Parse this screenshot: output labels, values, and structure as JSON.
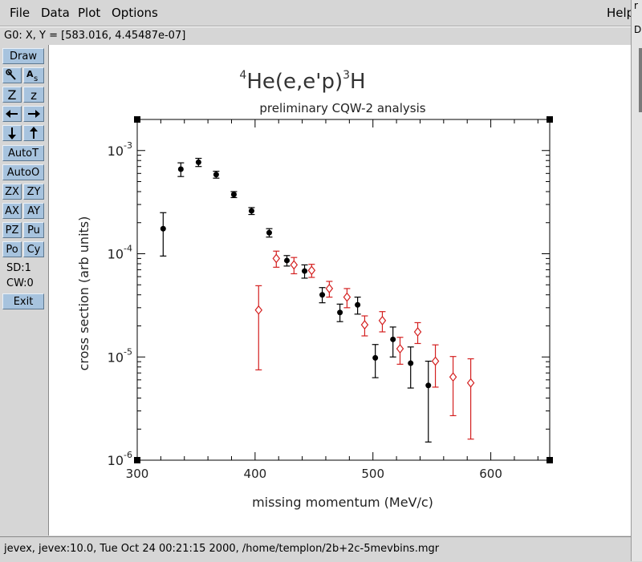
{
  "menu": {
    "file": "File",
    "data": "Data",
    "plot": "Plot",
    "options": "Options",
    "help": "Help"
  },
  "coords": {
    "text": "G0: X, Y = [583.016, 4.45487e-07]"
  },
  "toolbar": {
    "draw": "Draw",
    "zoom_icon_label": "Z",
    "zoom_small_label": "z",
    "autot": "AutoT",
    "autoo": "AutoO",
    "zx": "ZX",
    "zy": "ZY",
    "ax": "AX",
    "ay": "AY",
    "pz": "PZ",
    "pu": "Pu",
    "po": "Po",
    "cy": "Cy",
    "sd": "SD:1",
    "cw": "CW:0",
    "exit": "Exit"
  },
  "status": {
    "text": "jevex, jevex:10.0, Tue Oct 24 00:21:15 2000, /home/templon/2b+2c-5mevbins.mgr"
  },
  "chart_data": {
    "type": "scatter",
    "title": "4He(e,e'p)3H",
    "title_parts": {
      "sup1": "4",
      "main": "He(e,e'p)",
      "sup2": "3",
      "tail": "H"
    },
    "subtitle": "preliminary CQW-2 analysis",
    "xlabel": "missing momentum (MeV/c)",
    "ylabel": "cross section (arb units)",
    "xlim": [
      300,
      650
    ],
    "ylim": [
      1e-06,
      0.002
    ],
    "yscale": "log",
    "x_ticks": [
      300,
      400,
      500,
      600
    ],
    "x_tick_labels": [
      "300",
      "400",
      "500",
      "600"
    ],
    "y_ticks": [
      {
        "value": 1e-06,
        "base": "10",
        "exp": "-6"
      },
      {
        "value": 1e-05,
        "base": "10",
        "exp": "-5"
      },
      {
        "value": 0.0001,
        "base": "10",
        "exp": "-4"
      },
      {
        "value": 0.001,
        "base": "10",
        "exp": "-3"
      }
    ],
    "series": [
      {
        "name": "series-black",
        "marker": "circle",
        "color": "#000000",
        "points": [
          {
            "x": 322,
            "y": 0.000175,
            "ylo": 9.5e-05,
            "yhi": 0.00025
          },
          {
            "x": 337,
            "y": 0.00066,
            "ylo": 0.00056,
            "yhi": 0.00076
          },
          {
            "x": 352,
            "y": 0.00077,
            "ylo": 0.0007,
            "yhi": 0.00084
          },
          {
            "x": 367,
            "y": 0.000585,
            "ylo": 0.00054,
            "yhi": 0.00063
          },
          {
            "x": 382,
            "y": 0.000375,
            "ylo": 0.00035,
            "yhi": 0.0004
          },
          {
            "x": 397,
            "y": 0.00026,
            "ylo": 0.00024,
            "yhi": 0.00028
          },
          {
            "x": 412,
            "y": 0.00016,
            "ylo": 0.000145,
            "yhi": 0.000175
          },
          {
            "x": 427,
            "y": 8.6e-05,
            "ylo": 7.6e-05,
            "yhi": 9.6e-05
          },
          {
            "x": 442,
            "y": 6.8e-05,
            "ylo": 5.8e-05,
            "yhi": 7.8e-05
          },
          {
            "x": 457,
            "y": 4e-05,
            "ylo": 3.35e-05,
            "yhi": 4.7e-05
          },
          {
            "x": 472,
            "y": 2.7e-05,
            "ylo": 2.2e-05,
            "yhi": 3.25e-05
          },
          {
            "x": 487,
            "y": 3.2e-05,
            "ylo": 2.6e-05,
            "yhi": 3.8e-05
          },
          {
            "x": 502,
            "y": 9.8e-06,
            "ylo": 6.3e-06,
            "yhi": 1.32e-05
          },
          {
            "x": 517,
            "y": 1.48e-05,
            "ylo": 1e-05,
            "yhi": 1.95e-05
          },
          {
            "x": 532,
            "y": 8.7e-06,
            "ylo": 5e-06,
            "yhi": 1.25e-05
          },
          {
            "x": 547,
            "y": 5.3e-06,
            "ylo": 1.5e-06,
            "yhi": 9.1e-06
          }
        ]
      },
      {
        "name": "series-red",
        "marker": "diamond",
        "color": "#d42020",
        "points": [
          {
            "x": 403,
            "y": 2.85e-05,
            "ylo": 7.5e-06,
            "yhi": 4.9e-05
          },
          {
            "x": 418,
            "y": 9e-05,
            "ylo": 7.4e-05,
            "yhi": 0.000106
          },
          {
            "x": 433,
            "y": 7.8e-05,
            "ylo": 6.4e-05,
            "yhi": 9.2e-05
          },
          {
            "x": 448,
            "y": 6.9e-05,
            "ylo": 5.9e-05,
            "yhi": 7.9e-05
          },
          {
            "x": 463,
            "y": 4.6e-05,
            "ylo": 3.8e-05,
            "yhi": 5.4e-05
          },
          {
            "x": 478,
            "y": 3.8e-05,
            "ylo": 3e-05,
            "yhi": 4.6e-05
          },
          {
            "x": 493,
            "y": 2.05e-05,
            "ylo": 1.6e-05,
            "yhi": 2.5e-05
          },
          {
            "x": 508,
            "y": 2.25e-05,
            "ylo": 1.75e-05,
            "yhi": 2.75e-05
          },
          {
            "x": 523,
            "y": 1.2e-05,
            "ylo": 8.5e-06,
            "yhi": 1.55e-05
          },
          {
            "x": 538,
            "y": 1.75e-05,
            "ylo": 1.35e-05,
            "yhi": 2.15e-05
          },
          {
            "x": 553,
            "y": 9.1e-06,
            "ylo": 5.1e-06,
            "yhi": 1.31e-05
          },
          {
            "x": 568,
            "y": 6.4e-06,
            "ylo": 2.7e-06,
            "yhi": 1.01e-05
          },
          {
            "x": 583,
            "y": 5.6e-06,
            "ylo": 1.6e-06,
            "yhi": 9.6e-06
          }
        ]
      }
    ]
  }
}
